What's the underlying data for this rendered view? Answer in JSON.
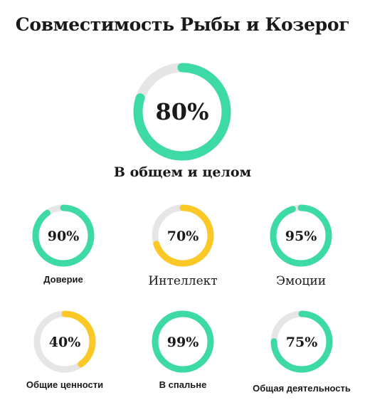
{
  "title": "Совместимость Рыбы и Козерог",
  "colors": {
    "green": "#3dd9a6",
    "yellow": "#fbc826",
    "track": "#e6e6e6",
    "text": "#1a1a1a"
  },
  "overall": {
    "percent": 80,
    "label": "80%",
    "caption": "В общем и целом",
    "color": "green"
  },
  "metrics": [
    {
      "label": "90%",
      "percent": 90,
      "caption": "Доверие",
      "color": "green"
    },
    {
      "label": "70%",
      "percent": 70,
      "caption": "Интеллект",
      "color": "yellow"
    },
    {
      "label": "95%",
      "percent": 95,
      "caption": "Эмоции",
      "color": "green"
    },
    {
      "label": "40%",
      "percent": 40,
      "caption": "Общие ценности",
      "color": "yellow"
    },
    {
      "label": "99%",
      "percent": 99,
      "caption": "В спальне",
      "color": "green"
    },
    {
      "label": "75%",
      "percent": 75,
      "caption": "Общая деятельность",
      "color": "green"
    }
  ]
}
